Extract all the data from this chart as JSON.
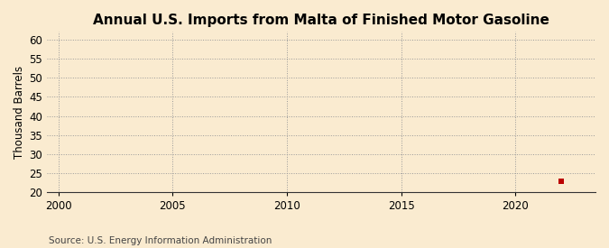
{
  "title": "Annual U.S. Imports from Malta of Finished Motor Gasoline",
  "ylabel": "Thousand Barrels",
  "source_text": "Source: U.S. Energy Information Administration",
  "background_color": "#faebd0",
  "plot_background_color": "#faebd0",
  "xlim": [
    1999.5,
    2023.5
  ],
  "ylim": [
    20,
    62
  ],
  "yticks": [
    20,
    25,
    30,
    35,
    40,
    45,
    50,
    55,
    60
  ],
  "xticks": [
    2000,
    2005,
    2010,
    2015,
    2020
  ],
  "data_points": [
    {
      "year": 2022,
      "value": 23,
      "color": "#bb0000",
      "marker": "s",
      "size": 18
    }
  ],
  "grid_color": "#999999",
  "grid_style": ":",
  "grid_alpha": 1.0,
  "title_fontsize": 11,
  "title_fontweight": "bold",
  "axis_label_fontsize": 8.5,
  "tick_fontsize": 8.5,
  "source_fontsize": 7.5
}
